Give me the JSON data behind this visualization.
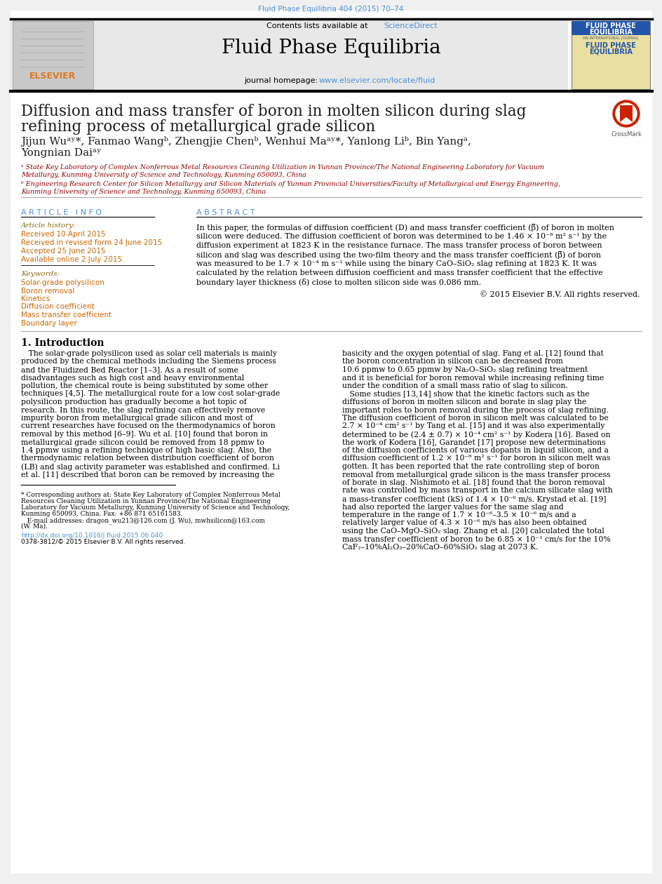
{
  "page_bg": "#f0f0f0",
  "content_bg": "#ffffff",
  "header_citation": "Fluid Phase Equilibria 404 (2015) 70–74",
  "header_citation_color": "#4a90d9",
  "journal_header_bg": "#e8e8e8",
  "contents_line": "Contents lists available at ",
  "sciencedirect_text": "ScienceDirect",
  "sciencedirect_color": "#4a90d9",
  "journal_name": "Fluid Phase Equilibria",
  "journal_homepage_label": "journal homepage: ",
  "journal_homepage_url": "www.elsevier.com/locate/fluid",
  "journal_homepage_color": "#4a90d9",
  "article_title_line1": "Diffusion and mass transfer of boron in molten silicon during slag",
  "article_title_line2": "refining process of metallurgical grade silicon",
  "title_color": "#1a1a1a",
  "authors": "Jijun Wuᵃʸ*, Fanmao Wangᵇ, Zhengjie Chenᵇ, Wenhui Maᵃʸ*, Yanlong Liᵇ, Bin Yangᵃ,",
  "authors2": "Yongnian Daiᵃʸ",
  "affil_a": "ᵃ State Key Laboratory of Complex Nonferrous Metal Resources Cleaning Utilization in Yunnan Province/The National Engineering Laboratory for Vacuum",
  "affil_a2": "Metallurgy, Kunming University of Science and Technology, Kunming 650093, China",
  "affil_b": "ᵇ Engineering Research Center for Silicon Metallurgy and Silicon Materials of Yunnan Provincial Universities/Faculty of Metallurgical and Energy Engineering,",
  "affil_b2": "Kunming University of Science and Technology, Kunming 650093, China",
  "affil_color": "#8B0000",
  "separator_color": "#aaaaaa",
  "article_info_header": "A R T I C L E   I N F O",
  "article_info_color": "#4a90d9",
  "article_history_label": "Article history:",
  "article_history_color": "#8B6914",
  "received": "Received 10 April 2015",
  "received_revised": "Received in revised form 24 June 2015",
  "accepted": "Accepted 25 June 2015",
  "available": "Available online 2 July 2015",
  "dates_color": "#cc6600",
  "keywords_label": "Keywords:",
  "keywords": [
    "Solar-grade polysilicon",
    "Boron removal",
    "Kinetics",
    "Diffusion coefficient",
    "Mass transfer coefficient",
    "Boundary layer"
  ],
  "keywords_color": "#cc6600",
  "abstract_header": "A B S T R A C T",
  "abstract_color": "#4a90d9",
  "abstract_lines": [
    "In this paper, the formulas of diffusion coefficient (D) and mass transfer coefficient (β̅) of boron in molten",
    "silicon were deduced. The diffusion coefficient of boron was determined to be 1.46 × 10⁻⁸ m² s⁻¹ by the",
    "diffusion experiment at 1823 K in the resistance furnace. The mass transfer process of boron between",
    "silicon and slag was described using the two-film theory and the mass transfer coefficient (β̅) of boron",
    "was measured to be 1.7 × 10⁻⁴ m s⁻¹ while using the binary CaO–SiO₂ slag refining at 1823 K. It was",
    "calculated by the relation between diffusion coefficient and mass transfer coefficient that the effective",
    "boundary layer thickness (δ) close to molten silicon side was 0.086 mm."
  ],
  "abstract_footer": "© 2015 Elsevier B.V. All rights reserved.",
  "abstract_text_color": "#000000",
  "intro_header": "1. Introduction",
  "intro_col1_lines": [
    "   The solar-grade polysilicon used as solar cell materials is mainly",
    "produced by the chemical methods including the Siemens process",
    "and the Fluidized Bed Reactor [1–3]. As a result of some",
    "disadvantages such as high cost and heavy environmental",
    "pollution, the chemical route is being substituted by some other",
    "techniques [4,5]. The metallurgical route for a low cost solar-grade",
    "polysilicon production has gradually become a hot topic of",
    "research. In this route, the slag refining can effectively remove",
    "impurity boron from metallurgical grade silicon and most of",
    "current researches have focused on the thermodynamics of boron",
    "removal by this method [6–9]. Wu et al. [10] found that boron in",
    "metallurgical grade silicon could be removed from 18 ppmw to",
    "1.4 ppmw using a refining technique of high basic slag. Also, the",
    "thermodynamic relation between distribution coefficient of boron",
    "(LB) and slag activity parameter was established and confirmed. Li",
    "et al. [11] described that boron can be removed by increasing the"
  ],
  "intro_col2_lines": [
    "basicity and the oxygen potential of slag. Fang et al. [12] found that",
    "the boron concentration in silicon can be decreased from",
    "10.6 ppmw to 0.65 ppmw by Na₂O–SiO₂ slag refining treatment",
    "and it is beneficial for boron removal while increasing refining time",
    "under the condition of a small mass ratio of slag to silicon.",
    "   Some studies [13,14] show that the kinetic factors such as the",
    "diffusions of boron in molten silicon and borate in slag play the",
    "important roles to boron removal during the process of slag refining.",
    "The diffusion coefficient of boron in silicon melt was calculated to be",
    "2.7 × 10⁻⁴ cm² s⁻¹ by Tang et al. [15] and it was also experimentally",
    "determined to be (2.4 ± 0.7) × 10⁻⁴ cm² s⁻¹ by Kodera [16]. Based on",
    "the work of Kodera [16], Garandet [17] propose new determinations",
    "of the diffusion coefficients of various dopants in liquid silicon, and a",
    "diffusion coefficient of 1.2 × 10⁻⁸ m² s⁻¹ for boron in silicon melt was",
    "gotten. It has been reported that the rate controlling step of boron",
    "removal from metallurgical grade silicon is the mass transfer process",
    "of borate in slag. Nishimoto et al. [18] found that the boron removal",
    "rate was controlled by mass transport in the calcium silicate slag with",
    "a mass-transfer coefficient (kS) of 1.4 × 10⁻⁶ m/s. Krystad et al. [19]",
    "had also reported the larger values for the same slag and",
    "temperature in the range of 1.7 × 10⁻⁶–3.5 × 10⁻⁶ m/s and a",
    "relatively larger value of 4.3 × 10⁻⁶ m/s has also been obtained",
    "using the CaO–MgO–SiO₂ slag. Zhang et al. [20] calculated the total",
    "mass transfer coefficient of boron to be 6.85 × 10⁻¹ cm/s for the 10%",
    "CaF₂–10%Al₂O₃–20%CaO–60%SiO₂ slag at 2073 K."
  ],
  "footnote_lines": [
    "* Corresponding authors at: State Key Laboratory of Complex Nonferrous Metal",
    "Resources Cleaning Utilization in Yunnan Province/The National Engineering",
    "Laboratory for Vacuum Metallurgy, Kunming University of Science and Technology,",
    "Kunming 650093, China. Fax: +86 871 65161583.",
    "   E-mail addresses: dragon_wu213@126.com (J. Wu), mwhsilicon@163.com",
    "(W. Ma)."
  ],
  "doi_text": "http://dx.doi.org/10.1016/j.fluid.2015.06.040",
  "issn_text": "0378-3812/© 2015 Elsevier B.V. All rights reserved.",
  "text_color": "#000000",
  "link_color": "#4a90d9"
}
